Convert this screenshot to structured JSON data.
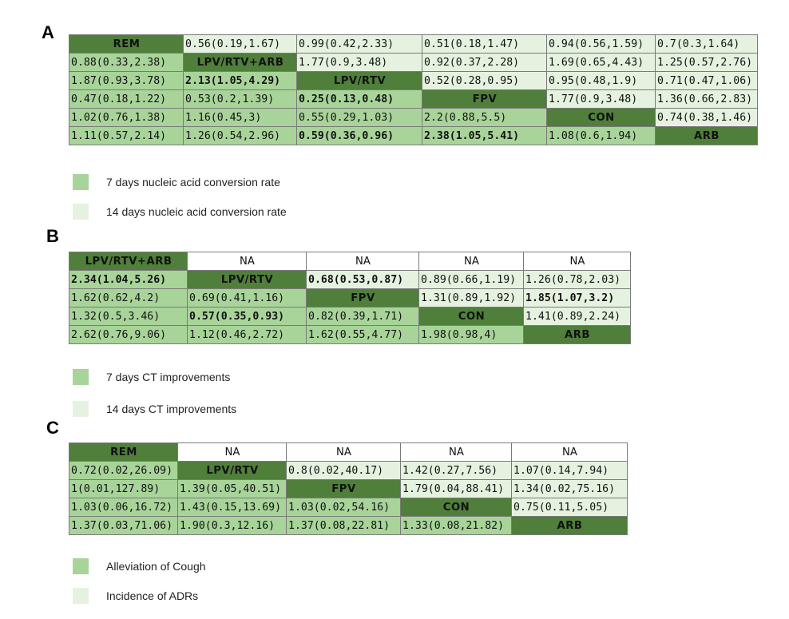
{
  "panels": [
    {
      "label": "A",
      "col_widths": [
        143,
        142,
        157,
        156,
        136,
        128
      ],
      "rows": [
        [
          {
            "t": "REM",
            "c": "diag"
          },
          {
            "t": "0.56(0.19,1.67)",
            "c": "up"
          },
          {
            "t": "0.99(0.42,2.33)",
            "c": "up"
          },
          {
            "t": "0.51(0.18,1.47)",
            "c": "up"
          },
          {
            "t": "0.94(0.56,1.59)",
            "c": "up"
          },
          {
            "t": "0.7(0.3,1.64)",
            "c": "up"
          }
        ],
        [
          {
            "t": "0.88(0.33,2.38)",
            "c": "lo"
          },
          {
            "t": "LPV/RTV+ARB",
            "c": "diag"
          },
          {
            "t": "1.77(0.9,3.48)",
            "c": "up"
          },
          {
            "t": "0.92(0.37,2.28)",
            "c": "up"
          },
          {
            "t": "1.69(0.65,4.43)",
            "c": "up"
          },
          {
            "t": "1.25(0.57,2.76)",
            "c": "up"
          }
        ],
        [
          {
            "t": "1.87(0.93,3.78)",
            "c": "lo"
          },
          {
            "t": "2.13(1.05,4.29)",
            "c": "lo sig"
          },
          {
            "t": "LPV/RTV",
            "c": "diag"
          },
          {
            "t": "0.52(0.28,0.95)",
            "c": "up"
          },
          {
            "t": "0.95(0.48,1.9)",
            "c": "up"
          },
          {
            "t": "0.71(0.47,1.06)",
            "c": "up"
          }
        ],
        [
          {
            "t": "0.47(0.18,1.22)",
            "c": "lo"
          },
          {
            "t": "0.53(0.2,1.39)",
            "c": "lo"
          },
          {
            "t": "0.25(0.13,0.48)",
            "c": "lo sig"
          },
          {
            "t": "FPV",
            "c": "diag"
          },
          {
            "t": "1.77(0.9,3.48)",
            "c": "up"
          },
          {
            "t": "1.36(0.66,2.83)",
            "c": "up"
          }
        ],
        [
          {
            "t": "1.02(0.76,1.38)",
            "c": "lo"
          },
          {
            "t": "1.16(0.45,3)",
            "c": "lo"
          },
          {
            "t": "0.55(0.29,1.03)",
            "c": "lo"
          },
          {
            "t": "2.2(0.88,5.5)",
            "c": "lo"
          },
          {
            "t": "CON",
            "c": "diag"
          },
          {
            "t": "0.74(0.38,1.46)",
            "c": "up"
          }
        ],
        [
          {
            "t": "1.11(0.57,2.14)",
            "c": "lo"
          },
          {
            "t": "1.26(0.54,2.96)",
            "c": "lo"
          },
          {
            "t": "0.59(0.36,0.96)",
            "c": "lo sig"
          },
          {
            "t": "2.38(1.05,5.41)",
            "c": "lo sig"
          },
          {
            "t": "1.08(0.6,1.94)",
            "c": "lo"
          },
          {
            "t": "ARB",
            "c": "diag"
          }
        ]
      ],
      "legend": [
        {
          "label": "7 days nucleic acid conversion rate",
          "c": "lo"
        },
        {
          "label": "14 days nucleic acid conversion rate",
          "c": "up"
        }
      ]
    },
    {
      "label": "B",
      "col_widths": [
        148,
        149,
        141,
        131,
        134
      ],
      "rows": [
        [
          {
            "t": "LPV/RTV+ARB",
            "c": "diag"
          },
          {
            "t": "NA",
            "c": "na"
          },
          {
            "t": "NA",
            "c": "na"
          },
          {
            "t": "NA",
            "c": "na"
          },
          {
            "t": "NA",
            "c": "na"
          }
        ],
        [
          {
            "t": "2.34(1.04,5.26)",
            "c": "lo sig"
          },
          {
            "t": "LPV/RTV",
            "c": "diag"
          },
          {
            "t": "0.68(0.53,0.87)",
            "c": "up sig"
          },
          {
            "t": "0.89(0.66,1.19)",
            "c": "up"
          },
          {
            "t": "1.26(0.78,2.03)",
            "c": "up"
          }
        ],
        [
          {
            "t": "1.62(0.62,4.2)",
            "c": "lo"
          },
          {
            "t": "0.69(0.41,1.16)",
            "c": "lo"
          },
          {
            "t": "FPV",
            "c": "diag"
          },
          {
            "t": "1.31(0.89,1.92)",
            "c": "up"
          },
          {
            "t": "1.85(1.07,3.2)",
            "c": "up sig"
          }
        ],
        [
          {
            "t": "1.32(0.5,3.46)",
            "c": "lo"
          },
          {
            "t": "0.57(0.35,0.93)",
            "c": "lo sig"
          },
          {
            "t": "0.82(0.39,1.71)",
            "c": "lo"
          },
          {
            "t": "CON",
            "c": "diag"
          },
          {
            "t": "1.41(0.89,2.24)",
            "c": "up"
          }
        ],
        [
          {
            "t": "2.62(0.76,9.06)",
            "c": "lo"
          },
          {
            "t": "1.12(0.46,2.72)",
            "c": "lo"
          },
          {
            "t": "1.62(0.55,4.77)",
            "c": "lo"
          },
          {
            "t": "1.98(0.98,4)",
            "c": "lo"
          },
          {
            "t": "ARB",
            "c": "diag"
          }
        ]
      ],
      "legend": [
        {
          "label": "7 days CT improvements",
          "c": "lo"
        },
        {
          "label": "14 days CT improvements",
          "c": "up"
        }
      ]
    },
    {
      "label": "C",
      "col_widths": [
        136,
        136,
        143,
        139,
        145
      ],
      "rows": [
        [
          {
            "t": "REM",
            "c": "diag"
          },
          {
            "t": "NA",
            "c": "na"
          },
          {
            "t": "NA",
            "c": "na"
          },
          {
            "t": "NA",
            "c": "na"
          },
          {
            "t": "NA",
            "c": "na"
          }
        ],
        [
          {
            "t": "0.72(0.02,26.09)",
            "c": "lo"
          },
          {
            "t": "LPV/RTV",
            "c": "diag"
          },
          {
            "t": "0.8(0.02,40.17)",
            "c": "up"
          },
          {
            "t": "1.42(0.27,7.56)",
            "c": "up"
          },
          {
            "t": "1.07(0.14,7.94)",
            "c": "up"
          }
        ],
        [
          {
            "t": "1(0.01,127.89)",
            "c": "lo"
          },
          {
            "t": "1.39(0.05,40.51)",
            "c": "lo"
          },
          {
            "t": "FPV",
            "c": "diag"
          },
          {
            "t": "1.79(0.04,88.41)",
            "c": "up"
          },
          {
            "t": "1.34(0.02,75.16)",
            "c": "up"
          }
        ],
        [
          {
            "t": "1.03(0.06,16.72)",
            "c": "lo"
          },
          {
            "t": "1.43(0.15,13.69)",
            "c": "lo"
          },
          {
            "t": "1.03(0.02,54.16)",
            "c": "lo"
          },
          {
            "t": "CON",
            "c": "diag"
          },
          {
            "t": "0.75(0.11,5.05)",
            "c": "up"
          }
        ],
        [
          {
            "t": "1.37(0.03,71.06)",
            "c": "lo"
          },
          {
            "t": "1.90(0.3,12.16)",
            "c": "lo"
          },
          {
            "t": "1.37(0.08,22.81)",
            "c": "lo"
          },
          {
            "t": "1.33(0.08,21.82)",
            "c": "lo"
          },
          {
            "t": "ARB",
            "c": "diag"
          }
        ]
      ],
      "legend": [
        {
          "label": "Alleviation of Cough",
          "c": "lo"
        },
        {
          "label": "Incidence of ADRs",
          "c": "up"
        }
      ]
    }
  ]
}
